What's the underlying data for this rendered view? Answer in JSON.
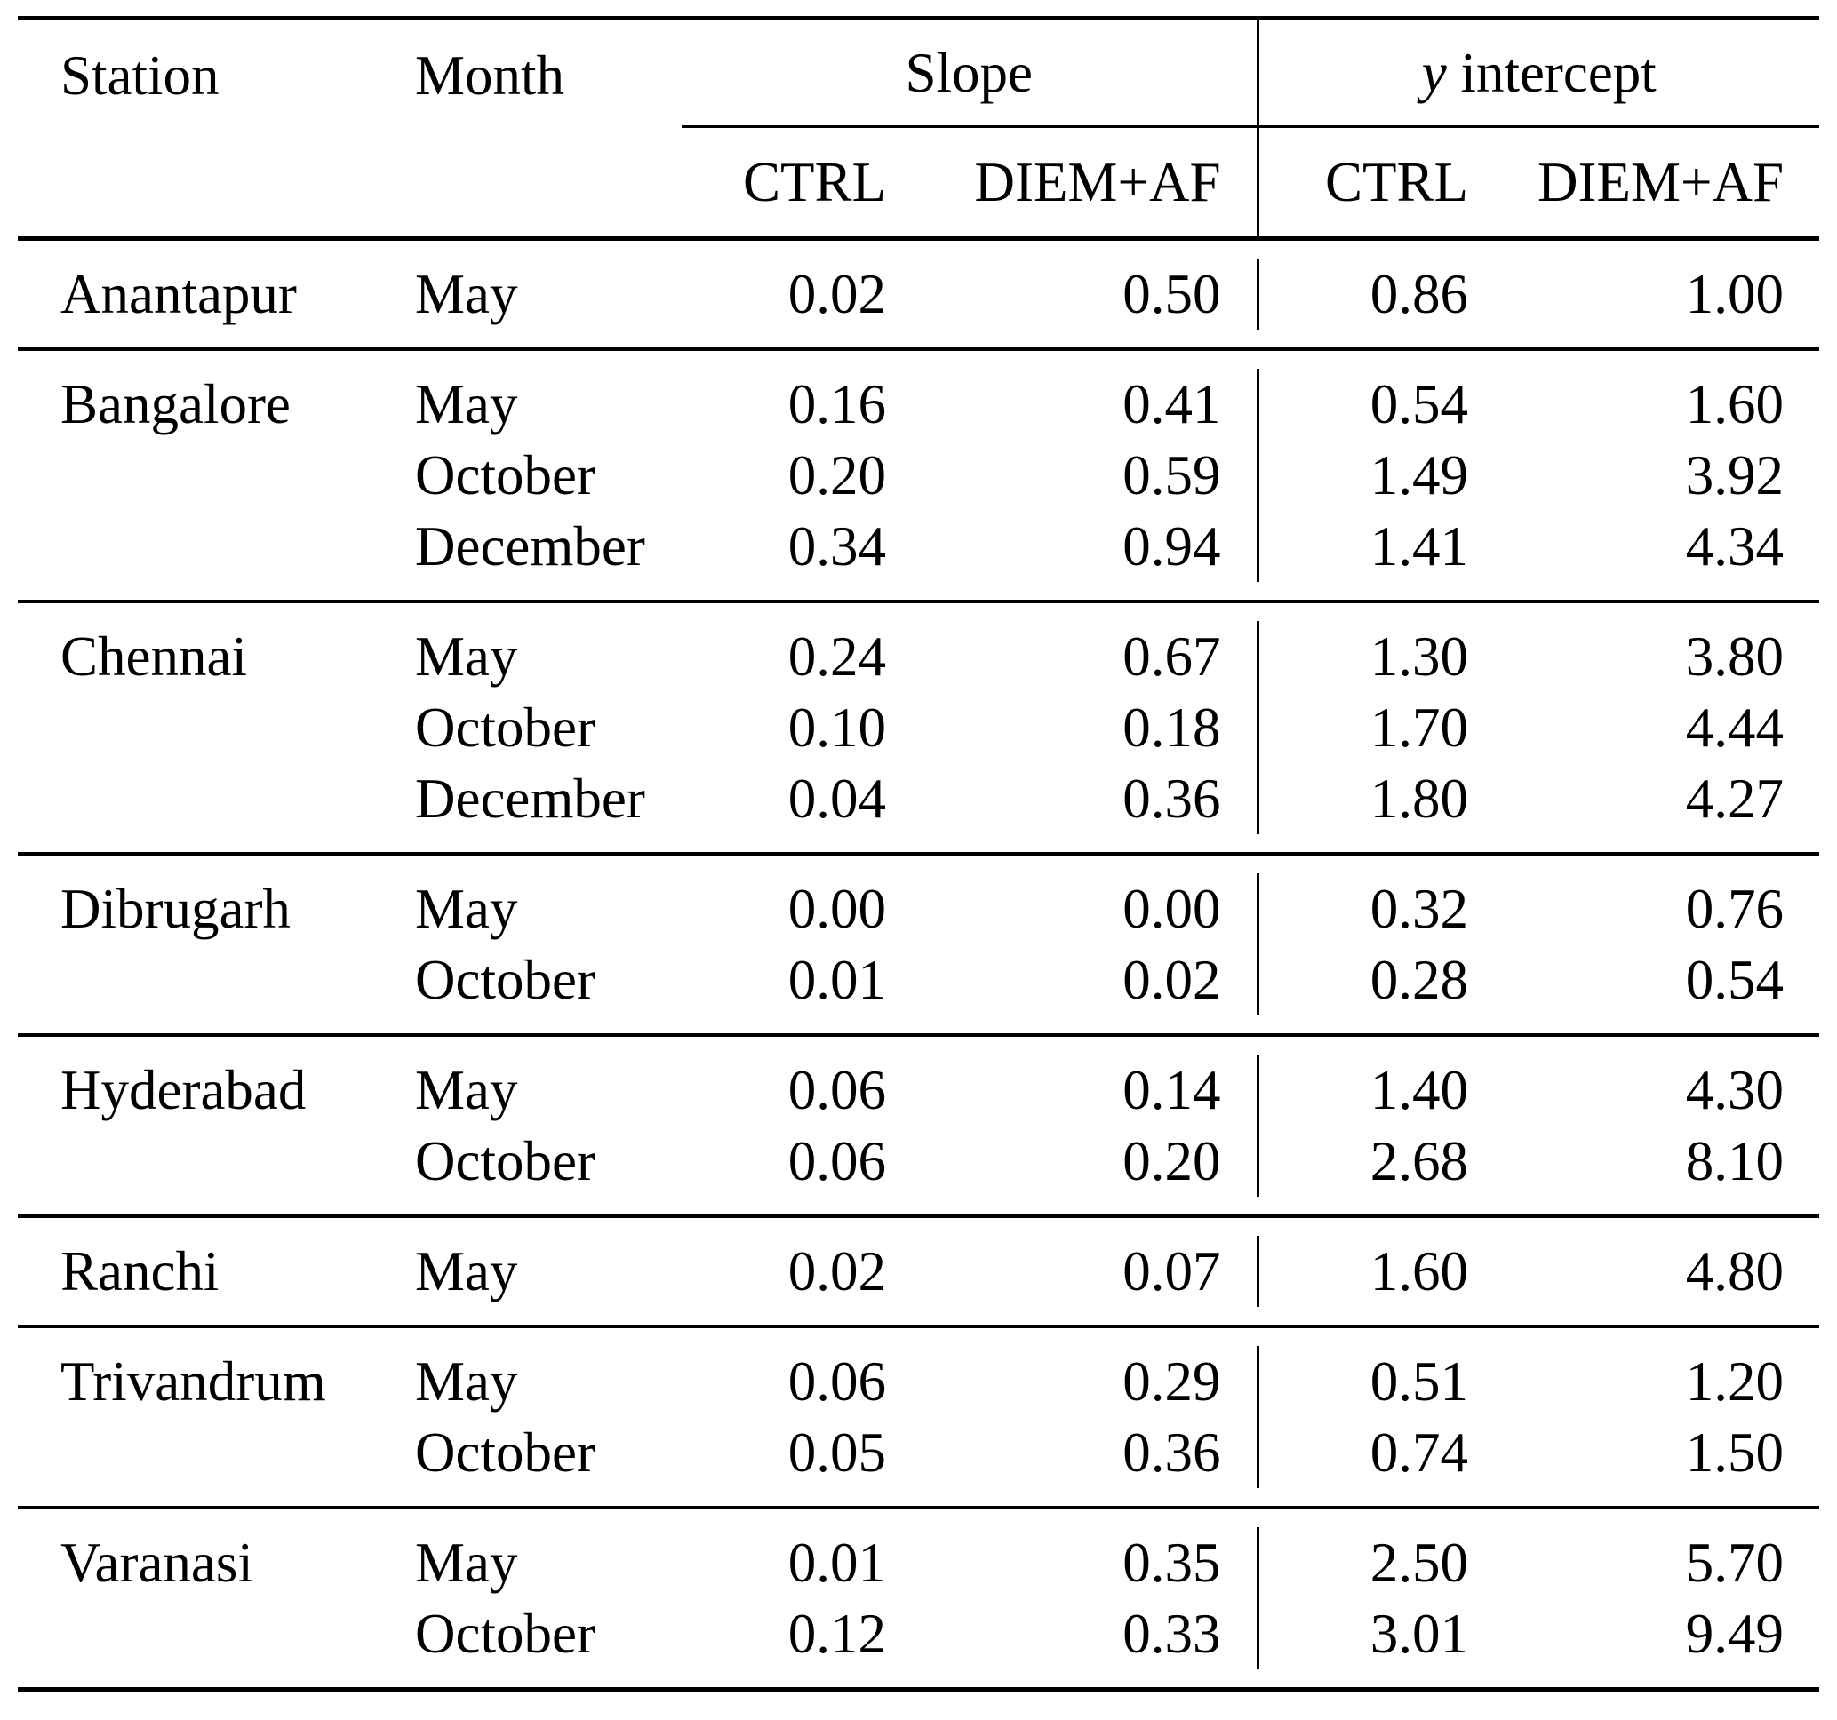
{
  "headers": {
    "station": "Station",
    "month": "Month",
    "slope_group": "Slope",
    "yint_var": "y",
    "yint_rest": "intercept",
    "sub": [
      "CTRL",
      "DIEM+AF",
      "CTRL",
      "DIEM+AF"
    ]
  },
  "groups": [
    {
      "station": "Anantapur",
      "rows": [
        {
          "month": "May",
          "s_ctrl": "0.02",
          "s_diem": "0.50",
          "y_ctrl": "0.86",
          "y_diem": "1.00"
        }
      ]
    },
    {
      "station": "Bangalore",
      "rows": [
        {
          "month": "May",
          "s_ctrl": "0.16",
          "s_diem": "0.41",
          "y_ctrl": "0.54",
          "y_diem": "1.60"
        },
        {
          "month": "October",
          "s_ctrl": "0.20",
          "s_diem": "0.59",
          "y_ctrl": "1.49",
          "y_diem": "3.92"
        },
        {
          "month": "December",
          "s_ctrl": "0.34",
          "s_diem": "0.94",
          "y_ctrl": "1.41",
          "y_diem": "4.34"
        }
      ]
    },
    {
      "station": "Chennai",
      "rows": [
        {
          "month": "May",
          "s_ctrl": "0.24",
          "s_diem": "0.67",
          "y_ctrl": "1.30",
          "y_diem": "3.80"
        },
        {
          "month": "October",
          "s_ctrl": "0.10",
          "s_diem": "0.18",
          "y_ctrl": "1.70",
          "y_diem": "4.44"
        },
        {
          "month": "December",
          "s_ctrl": "0.04",
          "s_diem": "0.36",
          "y_ctrl": "1.80",
          "y_diem": "4.27"
        }
      ]
    },
    {
      "station": "Dibrugarh",
      "rows": [
        {
          "month": "May",
          "s_ctrl": "0.00",
          "s_diem": "0.00",
          "y_ctrl": "0.32",
          "y_diem": "0.76"
        },
        {
          "month": "October",
          "s_ctrl": "0.01",
          "s_diem": "0.02",
          "y_ctrl": "0.28",
          "y_diem": "0.54"
        }
      ]
    },
    {
      "station": "Hyderabad",
      "rows": [
        {
          "month": "May",
          "s_ctrl": "0.06",
          "s_diem": "0.14",
          "y_ctrl": "1.40",
          "y_diem": "4.30"
        },
        {
          "month": "October",
          "s_ctrl": "0.06",
          "s_diem": "0.20",
          "y_ctrl": "2.68",
          "y_diem": "8.10"
        }
      ]
    },
    {
      "station": "Ranchi",
      "rows": [
        {
          "month": "May",
          "s_ctrl": "0.02",
          "s_diem": "0.07",
          "y_ctrl": "1.60",
          "y_diem": "4.80"
        }
      ]
    },
    {
      "station": "Trivandrum",
      "rows": [
        {
          "month": "May",
          "s_ctrl": "0.06",
          "s_diem": "0.29",
          "y_ctrl": "0.51",
          "y_diem": "1.20"
        },
        {
          "month": "October",
          "s_ctrl": "0.05",
          "s_diem": "0.36",
          "y_ctrl": "0.74",
          "y_diem": "1.50"
        }
      ]
    },
    {
      "station": "Varanasi",
      "rows": [
        {
          "month": "May",
          "s_ctrl": "0.01",
          "s_diem": "0.35",
          "y_ctrl": "2.50",
          "y_diem": "5.70"
        },
        {
          "month": "October",
          "s_ctrl": "0.12",
          "s_diem": "0.33",
          "y_ctrl": "3.01",
          "y_diem": "9.49"
        }
      ]
    }
  ]
}
